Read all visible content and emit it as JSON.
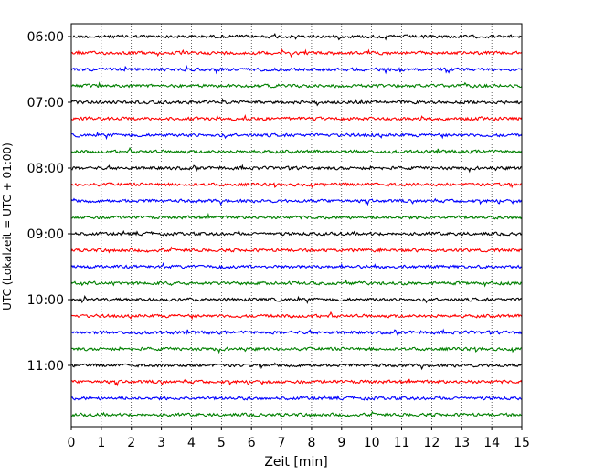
{
  "chart_data": {
    "type": "line",
    "title": "",
    "xlabel": "Zeit  [min]",
    "ylabel": "UTC (Lokalzeit = UTC + 01:00)",
    "xlim": [
      0,
      15
    ],
    "xticks": [
      0,
      1,
      2,
      3,
      4,
      5,
      6,
      7,
      8,
      9,
      10,
      11,
      12,
      13,
      14,
      15
    ],
    "yticks": [
      "06:00",
      "07:00",
      "08:00",
      "09:00",
      "10:00",
      "11:00"
    ],
    "grid": "vertical dotted",
    "trace_interval_min": 15,
    "trace_colors": [
      "#000000",
      "#ff0000",
      "#0000ff",
      "#008000"
    ],
    "traces": [
      {
        "start": "06:00"
      },
      {
        "start": "06:15"
      },
      {
        "start": "06:30"
      },
      {
        "start": "06:45"
      },
      {
        "start": "07:00"
      },
      {
        "start": "07:15"
      },
      {
        "start": "07:30"
      },
      {
        "start": "07:45"
      },
      {
        "start": "08:00"
      },
      {
        "start": "08:15"
      },
      {
        "start": "08:30"
      },
      {
        "start": "08:45"
      },
      {
        "start": "09:00"
      },
      {
        "start": "09:15"
      },
      {
        "start": "09:30"
      },
      {
        "start": "09:45"
      },
      {
        "start": "10:00"
      },
      {
        "start": "10:15"
      },
      {
        "start": "10:30"
      },
      {
        "start": "10:45"
      },
      {
        "start": "11:00"
      },
      {
        "start": "11:15"
      },
      {
        "start": "11:30"
      },
      {
        "start": "11:45"
      }
    ]
  }
}
